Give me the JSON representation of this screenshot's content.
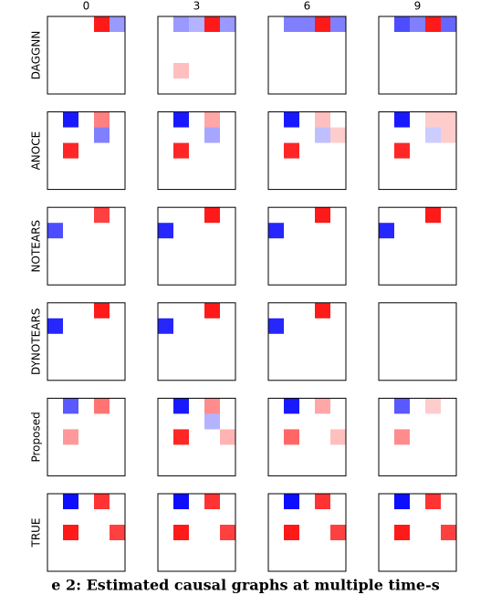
{
  "chart_data": {
    "type": "heatmap-grid",
    "column_labels": [
      "0",
      "3",
      "6",
      "9"
    ],
    "row_labels": [
      "DAGGNN",
      "ANOCE",
      "NOTEARS",
      "DYNOTEARS",
      "Proposed",
      "TRUE"
    ],
    "vlim": [
      -1,
      1
    ],
    "panels": [
      [
        [
          [
            0,
            0,
            0,
            0.9,
            -0.4
          ],
          [
            0,
            0,
            0,
            0,
            0
          ],
          [
            0,
            0,
            0,
            0,
            0
          ],
          [
            0,
            0,
            0,
            0,
            0
          ],
          [
            0,
            0,
            0,
            0,
            0
          ]
        ],
        [
          [
            0,
            -0.4,
            -0.3,
            0.9,
            -0.4
          ],
          [
            0,
            0,
            0,
            0,
            0
          ],
          [
            0,
            0,
            0,
            0,
            0
          ],
          [
            0,
            0.25,
            0,
            0,
            0
          ],
          [
            0,
            0,
            0,
            0,
            0
          ]
        ],
        [
          [
            0,
            -0.5,
            -0.5,
            0.9,
            -0.5
          ],
          [
            0,
            0,
            0,
            0,
            0
          ],
          [
            0,
            0,
            0,
            0,
            0
          ],
          [
            0,
            0,
            0,
            0,
            0
          ],
          [
            0,
            0,
            0,
            0,
            0
          ]
        ],
        [
          [
            0,
            -0.7,
            -0.5,
            0.9,
            -0.6
          ],
          [
            0,
            0,
            0,
            0,
            0
          ],
          [
            0,
            0,
            0,
            0,
            0
          ],
          [
            0,
            0,
            0,
            0,
            0
          ],
          [
            0,
            0,
            0,
            0,
            0
          ]
        ]
      ],
      [
        [
          [
            0,
            -0.9,
            0,
            0.5,
            0
          ],
          [
            0,
            0,
            0,
            -0.5,
            0
          ],
          [
            0,
            0.85,
            0,
            0,
            0
          ],
          [
            0,
            0,
            0,
            0,
            0
          ],
          [
            0,
            0,
            0,
            0,
            0
          ]
        ],
        [
          [
            0,
            -0.9,
            0,
            0.35,
            0
          ],
          [
            0,
            0,
            0,
            -0.35,
            0
          ],
          [
            0,
            0.85,
            0,
            0,
            0
          ],
          [
            0,
            0,
            0,
            0,
            0
          ],
          [
            0,
            0,
            0,
            0,
            0
          ]
        ],
        [
          [
            0,
            -0.9,
            0,
            0.25,
            0
          ],
          [
            0,
            0,
            0,
            -0.25,
            0.2
          ],
          [
            0,
            0.85,
            0,
            0,
            0
          ],
          [
            0,
            0,
            0,
            0,
            0
          ],
          [
            0,
            0,
            0,
            0,
            0
          ]
        ],
        [
          [
            0,
            -0.9,
            0,
            0.2,
            0.2
          ],
          [
            0,
            0,
            0,
            -0.2,
            0.2
          ],
          [
            0,
            0.85,
            0,
            0,
            0
          ],
          [
            0,
            0,
            0,
            0,
            0
          ],
          [
            0,
            0,
            0,
            0,
            0
          ]
        ]
      ],
      [
        [
          [
            0,
            0,
            0,
            0.75,
            0
          ],
          [
            -0.7,
            0,
            0,
            0,
            0
          ],
          [
            0,
            0,
            0,
            0,
            0
          ],
          [
            0,
            0,
            0,
            0,
            0
          ],
          [
            0,
            0,
            0,
            0,
            0
          ]
        ],
        [
          [
            0,
            0,
            0,
            0.9,
            0
          ],
          [
            -0.85,
            0,
            0,
            0,
            0
          ],
          [
            0,
            0,
            0,
            0,
            0
          ],
          [
            0,
            0,
            0,
            0,
            0
          ],
          [
            0,
            0,
            0,
            0,
            0
          ]
        ],
        [
          [
            0,
            0,
            0,
            0.9,
            0
          ],
          [
            -0.85,
            0,
            0,
            0,
            0
          ],
          [
            0,
            0,
            0,
            0,
            0
          ],
          [
            0,
            0,
            0,
            0,
            0
          ],
          [
            0,
            0,
            0,
            0,
            0
          ]
        ],
        [
          [
            0,
            0,
            0,
            0.9,
            0
          ],
          [
            -0.85,
            0,
            0,
            0,
            0
          ],
          [
            0,
            0,
            0,
            0,
            0
          ],
          [
            0,
            0,
            0,
            0,
            0
          ],
          [
            0,
            0,
            0,
            0,
            0
          ]
        ]
      ],
      [
        [
          [
            0,
            0,
            0,
            0.9,
            0
          ],
          [
            -0.85,
            0,
            0,
            0,
            0
          ],
          [
            0,
            0,
            0,
            0,
            0
          ],
          [
            0,
            0,
            0,
            0,
            0
          ],
          [
            0,
            0,
            0,
            0,
            0
          ]
        ],
        [
          [
            0,
            0,
            0,
            0.9,
            0
          ],
          [
            -0.85,
            0,
            0,
            0,
            0
          ],
          [
            0,
            0,
            0,
            0,
            0
          ],
          [
            0,
            0,
            0,
            0,
            0
          ],
          [
            0,
            0,
            0,
            0,
            0
          ]
        ],
        [
          [
            0,
            0,
            0,
            0.9,
            0
          ],
          [
            -0.85,
            0,
            0,
            0,
            0
          ],
          [
            0,
            0,
            0,
            0,
            0
          ],
          [
            0,
            0,
            0,
            0,
            0
          ],
          [
            0,
            0,
            0,
            0,
            0
          ]
        ],
        [
          [
            0,
            0,
            0,
            0,
            0
          ],
          [
            0,
            0,
            0,
            0,
            0
          ],
          [
            0,
            0,
            0,
            0,
            0
          ],
          [
            0,
            0,
            0,
            0,
            0
          ],
          [
            0,
            0,
            0,
            0,
            0
          ]
        ]
      ],
      [
        [
          [
            0,
            -0.65,
            0,
            0.55,
            0
          ],
          [
            0,
            0,
            0,
            0,
            0
          ],
          [
            0,
            0.4,
            0,
            0,
            0
          ],
          [
            0,
            0,
            0,
            0,
            0
          ],
          [
            0,
            0,
            0,
            0,
            0
          ]
        ],
        [
          [
            0,
            -0.9,
            0,
            0.45,
            0
          ],
          [
            0,
            0,
            0,
            -0.3,
            0
          ],
          [
            0,
            0.85,
            0,
            0,
            0.3
          ],
          [
            0,
            0,
            0,
            0,
            0
          ],
          [
            0,
            0,
            0,
            0,
            0
          ]
        ],
        [
          [
            0,
            -0.9,
            0,
            0.35,
            0
          ],
          [
            0,
            0,
            0,
            0,
            0
          ],
          [
            0,
            0.6,
            0,
            0,
            0.25
          ],
          [
            0,
            0,
            0,
            0,
            0
          ],
          [
            0,
            0,
            0,
            0,
            0
          ]
        ],
        [
          [
            0,
            -0.65,
            0,
            0.2,
            0
          ],
          [
            0,
            0,
            0,
            0,
            0
          ],
          [
            0,
            0.45,
            0,
            0,
            0
          ],
          [
            0,
            0,
            0,
            0,
            0
          ],
          [
            0,
            0,
            0,
            0,
            0
          ]
        ]
      ],
      [
        [
          [
            0,
            -0.95,
            0,
            0.8,
            0
          ],
          [
            0,
            0,
            0,
            0,
            0
          ],
          [
            0,
            0.9,
            0,
            0,
            0.75
          ],
          [
            0,
            0,
            0,
            0,
            0
          ],
          [
            0,
            0,
            0,
            0,
            0
          ]
        ],
        [
          [
            0,
            -0.95,
            0,
            0.8,
            0
          ],
          [
            0,
            0,
            0,
            0,
            0
          ],
          [
            0,
            0.9,
            0,
            0,
            0.75
          ],
          [
            0,
            0,
            0,
            0,
            0
          ],
          [
            0,
            0,
            0,
            0,
            0
          ]
        ],
        [
          [
            0,
            -0.95,
            0,
            0.8,
            0
          ],
          [
            0,
            0,
            0,
            0,
            0
          ],
          [
            0,
            0.9,
            0,
            0,
            0.75
          ],
          [
            0,
            0,
            0,
            0,
            0
          ],
          [
            0,
            0,
            0,
            0,
            0
          ]
        ],
        [
          [
            0,
            -0.95,
            0,
            0.8,
            0
          ],
          [
            0,
            0,
            0,
            0,
            0
          ],
          [
            0,
            0.9,
            0,
            0,
            0.75
          ],
          [
            0,
            0,
            0,
            0,
            0
          ],
          [
            0,
            0,
            0,
            0,
            0
          ]
        ]
      ]
    ]
  },
  "caption": "e 2: Estimated causal graphs at multiple time-s"
}
